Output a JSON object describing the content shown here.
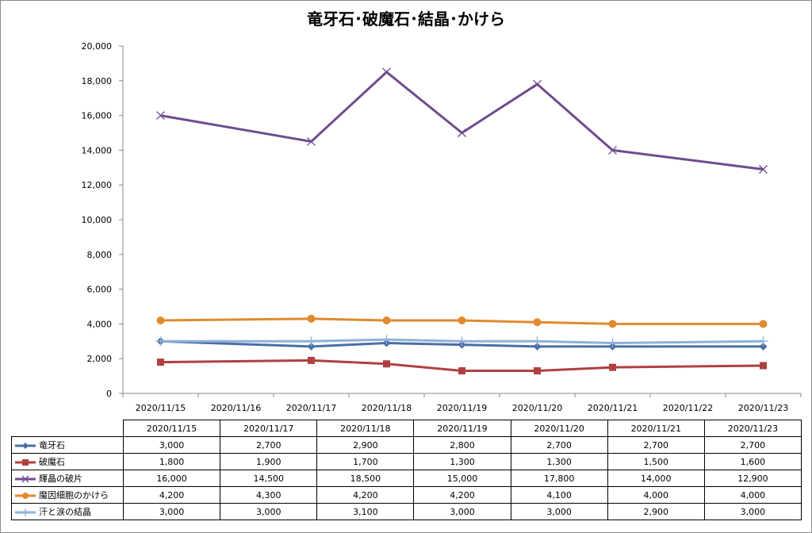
{
  "chart_data": {
    "type": "line",
    "title": "竜牙石･破魔石･結晶･かけら",
    "x_axis_labels": [
      "2020/11/15",
      "2020/11/16",
      "2020/11/17",
      "2020/11/18",
      "2020/11/19",
      "2020/11/20",
      "2020/11/21",
      "2020/11/22",
      "2020/11/23"
    ],
    "categories": [
      "2020/11/15",
      "2020/11/17",
      "2020/11/18",
      "2020/11/19",
      "2020/11/20",
      "2020/11/21",
      "2020/11/23"
    ],
    "ylim": [
      0,
      20000
    ],
    "y_ticks": [
      "0",
      "2,000",
      "4,000",
      "6,000",
      "8,000",
      "10,000",
      "12,000",
      "14,000",
      "16,000",
      "18,000",
      "20,000"
    ],
    "grid": false,
    "legend": "data-table",
    "series": [
      {
        "name": "竜牙石",
        "color": "#4a6fa5",
        "marker": "diamond",
        "values": [
          3000,
          2700,
          2900,
          2800,
          2700,
          2700,
          2700
        ],
        "labels": [
          "3,000",
          "2,700",
          "2,900",
          "2,800",
          "2,700",
          "2,700",
          "2,700"
        ]
      },
      {
        "name": "破魔石",
        "color": "#b04040",
        "marker": "square",
        "values": [
          1800,
          1900,
          1700,
          1300,
          1300,
          1500,
          1600
        ],
        "labels": [
          "1,800",
          "1,900",
          "1,700",
          "1,300",
          "1,300",
          "1,500",
          "1,600"
        ]
      },
      {
        "name": "輝晶の破片",
        "color": "#6e4c8e",
        "marker": "x",
        "values": [
          16000,
          14500,
          18500,
          15000,
          17800,
          14000,
          12900
        ],
        "labels": [
          "16,000",
          "14,500",
          "18,500",
          "15,000",
          "17,800",
          "14,000",
          "12,900"
        ]
      },
      {
        "name": "魔因細胞のかけら",
        "color": "#e08a2e",
        "marker": "circle",
        "values": [
          4200,
          4300,
          4200,
          4200,
          4100,
          4000,
          4000
        ],
        "labels": [
          "4,200",
          "4,300",
          "4,200",
          "4,200",
          "4,100",
          "4,000",
          "4,000"
        ]
      },
      {
        "name": "汗と涙の結晶",
        "color": "#8fb0d8",
        "marker": "plus",
        "values": [
          3000,
          3000,
          3100,
          3000,
          3000,
          2900,
          3000
        ],
        "labels": [
          "3,000",
          "3,000",
          "3,100",
          "3,000",
          "3,000",
          "2,900",
          "3,000"
        ]
      }
    ]
  }
}
